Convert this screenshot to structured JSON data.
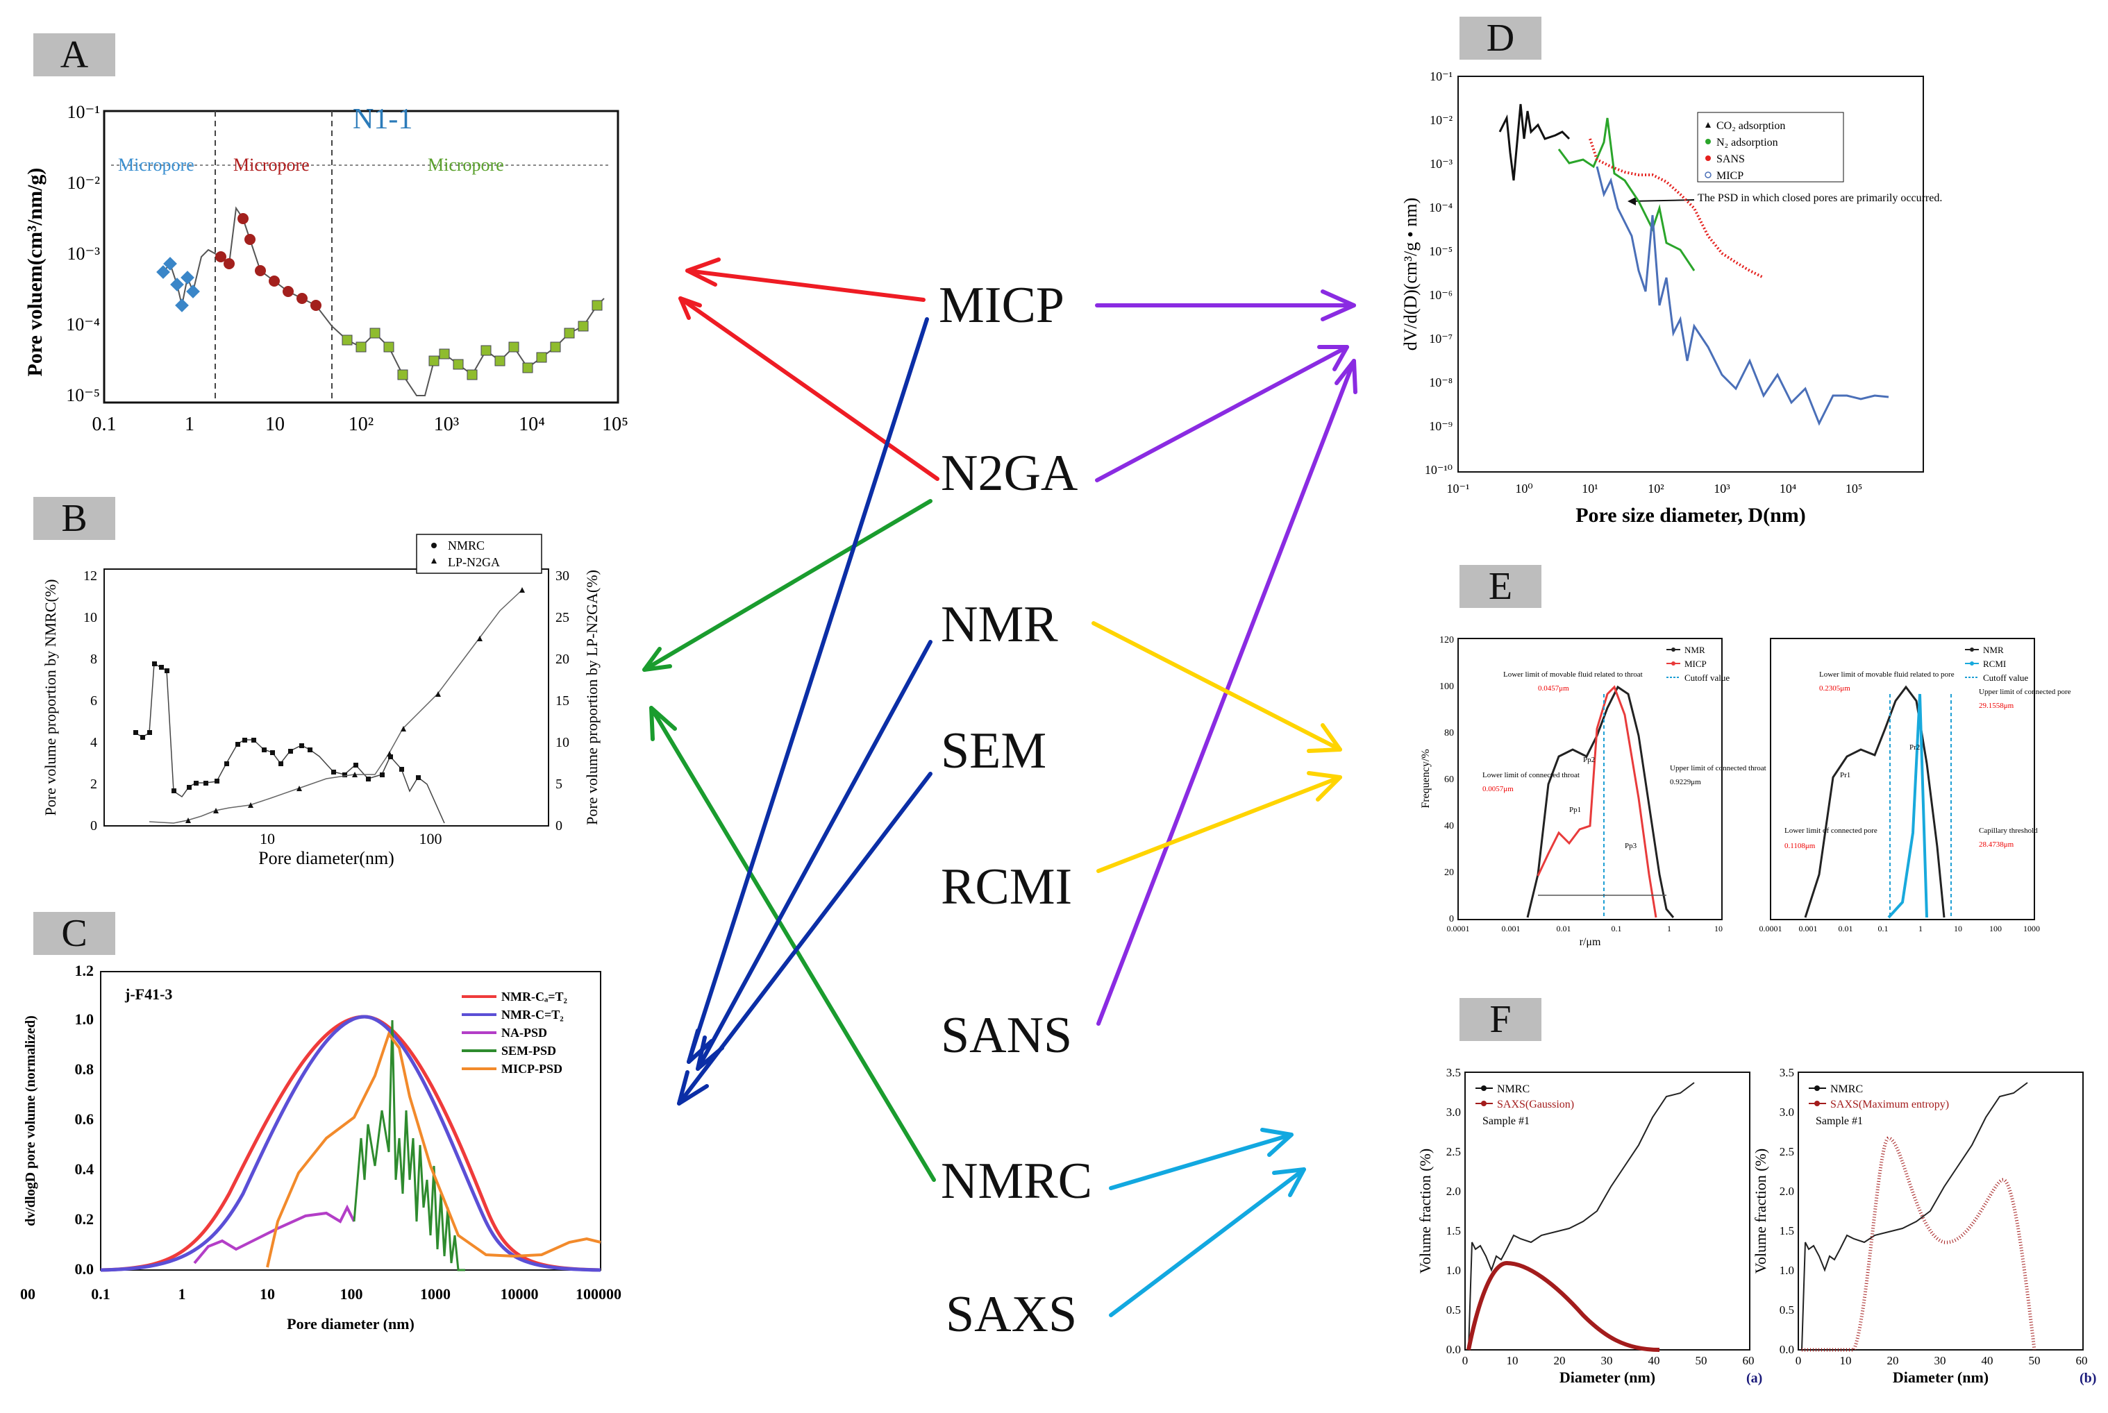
{
  "panels": {
    "A": {
      "tag": "A",
      "sample": "N1-1",
      "ylabel": "Pore voluem(cm³/nm/g)",
      "region_labels": [
        "Micropore",
        "Micropore",
        "Micropore"
      ],
      "x_ticks": [
        "0.1",
        "1",
        "10",
        "10²",
        "10³",
        "10⁴",
        "10⁵"
      ],
      "y_ticks": [
        "10⁻¹",
        "10⁻²",
        "10⁻³",
        "10⁻⁴",
        "10⁻⁵"
      ]
    },
    "B": {
      "tag": "B",
      "ylabel_left": "Pore volume proportion by NMRC(%)",
      "ylabel_right": "Pore volume proportion by LP-N2GA(%)",
      "xlabel": "Pore diameter(nm)",
      "legend": [
        "NMRC",
        "LP-N2GA"
      ],
      "y_ticks_left": [
        "0",
        "2",
        "4",
        "6",
        "8",
        "10",
        "12"
      ],
      "y_ticks_right": [
        "0",
        "5",
        "10",
        "15",
        "20",
        "25",
        "30"
      ],
      "x_ticks": [
        "10",
        "100"
      ]
    },
    "C": {
      "tag": "C",
      "sample": "j-F41-3",
      "ylabel": "dv/dlogD pore volume (normalized)",
      "xlabel": "Pore diameter (nm)",
      "legend": [
        "NMR-Cₐ=T₂",
        "NMR-C=T₂",
        "NA-PSD",
        "SEM-PSD",
        "MICP-PSD"
      ],
      "y_ticks": [
        "0.0",
        "0.2",
        "0.4",
        "0.6",
        "0.8",
        "1.0",
        "1.2"
      ],
      "x_ticks": [
        "00",
        "0.1",
        "1",
        "10",
        "100",
        "1000",
        "10000",
        "100000"
      ]
    },
    "D": {
      "tag": "D",
      "ylabel": "dV/d(D)(cm³/g • nm)",
      "xlabel": "Pore size diameter, D(nm)",
      "legend": [
        "CO₂ adsorption",
        "N₂ adsorption",
        "SANS",
        "MICP"
      ],
      "annotation": "The PSD in which closed pores are primarily occurred.",
      "y_ticks": [
        "10⁻¹",
        "10⁻²",
        "10⁻³",
        "10⁻⁴",
        "10⁻⁵",
        "10⁻⁶",
        "10⁻⁷",
        "10⁻⁸",
        "10⁻⁹",
        "10⁻¹⁰"
      ],
      "x_ticks": [
        "10⁻¹",
        "10⁰",
        "10¹",
        "10²",
        "10³",
        "10⁴",
        "10⁵"
      ]
    },
    "E": {
      "tag": "E",
      "left": {
        "legend": [
          "NMR",
          "MICP",
          "Cutoff value"
        ],
        "regions": [
          "Pp1",
          "Pp2",
          "Pp3"
        ],
        "ann_lower_connected": "Lower limit of connected throat",
        "ann_lower_connected_val": "0.0057μm",
        "ann_lower_movable": "Lower limit of movable fluid related to throat",
        "ann_lower_movable_val": "0.0457μm",
        "ann_upper": "Upper limit of connected throat",
        "ann_upper_val": "0.9229μm"
      },
      "right": {
        "legend": [
          "NMR",
          "RCMI",
          "Cutoff value"
        ],
        "regions": [
          "Pr1",
          "Pr2"
        ],
        "ann_lower_connected": "Lower limit of connected pore",
        "ann_lower_connected_val": "0.1108μm",
        "ann_lower_movable": "Lower limit of movable fluid related to pore",
        "ann_lower_movable_val": "0.2305μm",
        "ann_upper": "Upper limit of connected pore",
        "ann_upper_val": "29.1558μm",
        "ann_capillary": "Capillary threshold",
        "ann_capillary_val": "28.4738μm"
      },
      "ylabel": "Frequency/%",
      "xlabel": "r/μm",
      "y_ticks": [
        "0",
        "20",
        "40",
        "60",
        "80",
        "100",
        "120"
      ],
      "x_ticks": [
        "0.0001",
        "0.001",
        "0.01",
        "0.1",
        "1",
        "10"
      ],
      "x_ticks_right": [
        "0.0001",
        "0.001",
        "0.01",
        "0.1",
        "1",
        "10",
        "100",
        "1000"
      ]
    },
    "F": {
      "tag": "F",
      "left": {
        "legend": [
          "NMRC",
          "SAXS(Gaussion)"
        ],
        "sample": "Sample #1",
        "sub": "(a)"
      },
      "right": {
        "legend": [
          "NMRC",
          "SAXS(Maximum entropy)"
        ],
        "sample": "Sample #1",
        "sub": "(b)"
      },
      "ylabel": "Volume fraction (%)",
      "xlabel": "Diameter (nm)",
      "y_ticks": [
        "0.0",
        "0.5",
        "1.0",
        "1.5",
        "2.0",
        "2.5",
        "3.0",
        "3.5"
      ],
      "x_ticks": [
        "0",
        "10",
        "20",
        "30",
        "40",
        "50",
        "60"
      ]
    }
  },
  "methods": [
    "MICP",
    "N2GA",
    "NMR",
    "SEM",
    "RCMI",
    "SANS",
    "NMRC",
    "SAXS"
  ],
  "edges": [
    {
      "from": "MICP",
      "to": "A",
      "color": "#ee1c24"
    },
    {
      "from": "N2GA",
      "to": "A",
      "color": "#ee1c24"
    },
    {
      "from": "MICP",
      "to": "D",
      "color": "#8a2be2"
    },
    {
      "from": "N2GA",
      "to": "D",
      "color": "#8a2be2"
    },
    {
      "from": "SANS",
      "to": "D",
      "color": "#8a2be2"
    },
    {
      "from": "N2GA",
      "to": "B",
      "color": "#1a9c2e"
    },
    {
      "from": "NMRC",
      "to": "B",
      "color": "#1a9c2e"
    },
    {
      "from": "MICP",
      "to": "C",
      "color": "#0b2ea6"
    },
    {
      "from": "NMR",
      "to": "C",
      "color": "#0b2ea6"
    },
    {
      "from": "SEM",
      "to": "C",
      "color": "#0b2ea6"
    },
    {
      "from": "NMR",
      "to": "E",
      "color": "#ffd400"
    },
    {
      "from": "RCMI",
      "to": "E",
      "color": "#ffd400"
    },
    {
      "from": "NMRC",
      "to": "F",
      "color": "#12a8e0"
    },
    {
      "from": "SAXS",
      "to": "F",
      "color": "#12a8e0"
    }
  ]
}
